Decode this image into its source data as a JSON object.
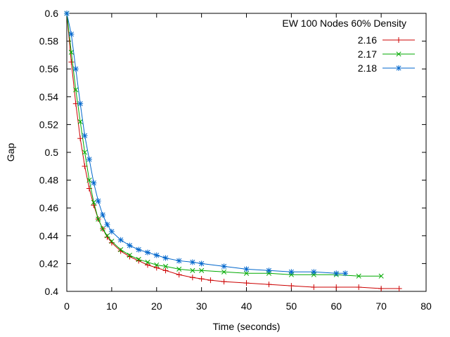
{
  "chart_data": {
    "type": "line",
    "title": "",
    "xlabel": "Time (seconds)",
    "ylabel": "Gap",
    "xlim": [
      0,
      80
    ],
    "ylim": [
      0.4,
      0.6
    ],
    "xticks": [
      0,
      10,
      20,
      30,
      40,
      50,
      60,
      70,
      80
    ],
    "yticks": [
      0.4,
      0.42,
      0.44,
      0.46,
      0.48,
      0.5,
      0.52,
      0.54,
      0.56,
      0.58,
      0.6
    ],
    "grid": false,
    "legend_title": "EW 100 Nodes 60% Density",
    "legend_position": "top-right",
    "series": [
      {
        "name": "2.16",
        "color": "#cc0000",
        "marker": "plus",
        "x": [
          0,
          1,
          2,
          3,
          4,
          5,
          6,
          7,
          8,
          9,
          10,
          12,
          14,
          16,
          18,
          20,
          22,
          25,
          28,
          30,
          32,
          35,
          40,
          45,
          50,
          55,
          60,
          65,
          70,
          74
        ],
        "y": [
          0.6,
          0.565,
          0.535,
          0.51,
          0.49,
          0.474,
          0.462,
          0.452,
          0.445,
          0.439,
          0.435,
          0.429,
          0.425,
          0.422,
          0.419,
          0.417,
          0.415,
          0.412,
          0.41,
          0.409,
          0.408,
          0.407,
          0.406,
          0.405,
          0.404,
          0.403,
          0.403,
          0.403,
          0.402,
          0.402
        ]
      },
      {
        "name": "2.17",
        "color": "#00aa00",
        "marker": "cross",
        "x": [
          0,
          1,
          2,
          3,
          4,
          5,
          6,
          7,
          8,
          9,
          10,
          12,
          14,
          16,
          18,
          20,
          22,
          25,
          28,
          30,
          35,
          40,
          45,
          50,
          55,
          60,
          65,
          70
        ],
        "y": [
          0.6,
          0.572,
          0.545,
          0.522,
          0.5,
          0.48,
          0.464,
          0.452,
          0.445,
          0.44,
          0.436,
          0.43,
          0.426,
          0.423,
          0.421,
          0.419,
          0.418,
          0.416,
          0.415,
          0.415,
          0.414,
          0.413,
          0.413,
          0.412,
          0.412,
          0.412,
          0.411,
          0.411
        ]
      },
      {
        "name": "2.18",
        "color": "#0066cc",
        "marker": "star",
        "x": [
          0,
          1,
          2,
          3,
          4,
          5,
          6,
          7,
          8,
          9,
          10,
          12,
          14,
          16,
          18,
          20,
          22,
          25,
          28,
          30,
          35,
          40,
          45,
          50,
          55,
          60,
          62
        ],
        "y": [
          0.6,
          0.585,
          0.56,
          0.535,
          0.512,
          0.495,
          0.478,
          0.465,
          0.455,
          0.448,
          0.443,
          0.437,
          0.433,
          0.43,
          0.428,
          0.426,
          0.424,
          0.422,
          0.421,
          0.42,
          0.418,
          0.416,
          0.415,
          0.414,
          0.414,
          0.413,
          0.413
        ]
      }
    ]
  }
}
